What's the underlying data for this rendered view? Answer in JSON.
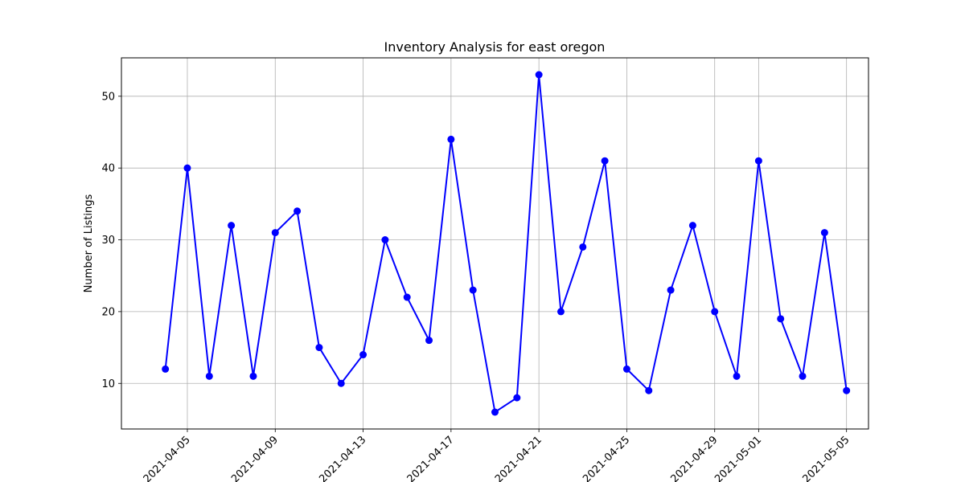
{
  "chart_data": {
    "type": "line",
    "title": "Inventory Analysis for east oregon",
    "xlabel": "",
    "ylabel": "Number of Listings",
    "grid": true,
    "color": "#0000ff",
    "marker": "circle",
    "x": [
      "2021-04-04",
      "2021-04-05",
      "2021-04-06",
      "2021-04-07",
      "2021-04-08",
      "2021-04-09",
      "2021-04-10",
      "2021-04-11",
      "2021-04-12",
      "2021-04-13",
      "2021-04-14",
      "2021-04-15",
      "2021-04-16",
      "2021-04-17",
      "2021-04-18",
      "2021-04-19",
      "2021-04-20",
      "2021-04-21",
      "2021-04-22",
      "2021-04-23",
      "2021-04-24",
      "2021-04-25",
      "2021-04-26",
      "2021-04-27",
      "2021-04-28",
      "2021-04-29",
      "2021-04-30",
      "2021-05-01",
      "2021-05-02",
      "2021-05-03",
      "2021-05-04",
      "2021-05-05"
    ],
    "values": [
      12,
      40,
      11,
      32,
      11,
      31,
      34,
      15,
      10,
      14,
      30,
      22,
      16,
      44,
      23,
      6,
      8,
      53,
      20,
      29,
      41,
      12,
      9,
      23,
      32,
      20,
      11,
      41,
      19,
      11,
      31,
      9
    ],
    "xlim": [
      "2021-04-02",
      "2021-05-06"
    ],
    "ylim": [
      3.65,
      55.35
    ],
    "x_ticks": [
      "2021-04-05",
      "2021-04-09",
      "2021-04-13",
      "2021-04-17",
      "2021-04-21",
      "2021-04-25",
      "2021-04-29",
      "2021-05-01",
      "2021-05-05"
    ],
    "y_ticks": [
      10,
      20,
      30,
      40,
      50
    ]
  }
}
